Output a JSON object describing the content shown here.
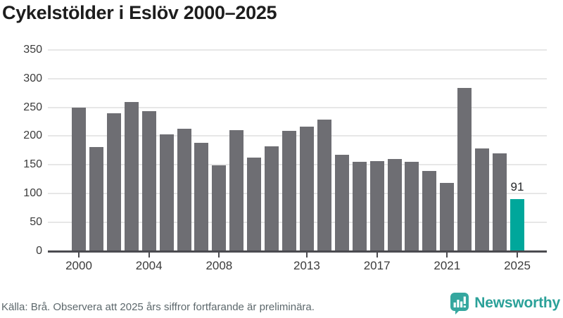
{
  "title": "Cykelstölder i Eslöv 2000–2025",
  "chart_data": {
    "type": "bar",
    "categories": [
      2000,
      2001,
      2002,
      2003,
      2004,
      2005,
      2006,
      2007,
      2008,
      2009,
      2010,
      2011,
      2012,
      2013,
      2014,
      2015,
      2016,
      2017,
      2018,
      2019,
      2020,
      2021,
      2022,
      2023,
      2024,
      2025
    ],
    "values": [
      250,
      181,
      240,
      259,
      243,
      203,
      213,
      188,
      149,
      210,
      163,
      182,
      209,
      216,
      229,
      168,
      155,
      157,
      160,
      155,
      139,
      118,
      284,
      178,
      170,
      91
    ],
    "title": "Cykelstölder i Eslöv 2000–2025",
    "xlabel": "",
    "ylabel": "",
    "ylim": [
      0,
      350
    ],
    "yticks": [
      0,
      50,
      100,
      150,
      200,
      250,
      300,
      350
    ],
    "xtick_labels": [
      "2000",
      "2004",
      "2008",
      "2013",
      "2017",
      "2021",
      "2025"
    ],
    "grid": true,
    "legend": "none",
    "bar_color": "#6e6e73",
    "highlight_category": "2025",
    "highlight_color": "#00a79b",
    "annotation": {
      "category": "2025",
      "text": "91"
    }
  },
  "footer": {
    "source_note": "Källa: Brå. Observera att 2025 års siffror fortfarande är preliminära."
  },
  "brand": {
    "name": "Newsworthy",
    "logo_icon": "bar-chart-speech-bubble-icon",
    "color": "#2ba199"
  }
}
